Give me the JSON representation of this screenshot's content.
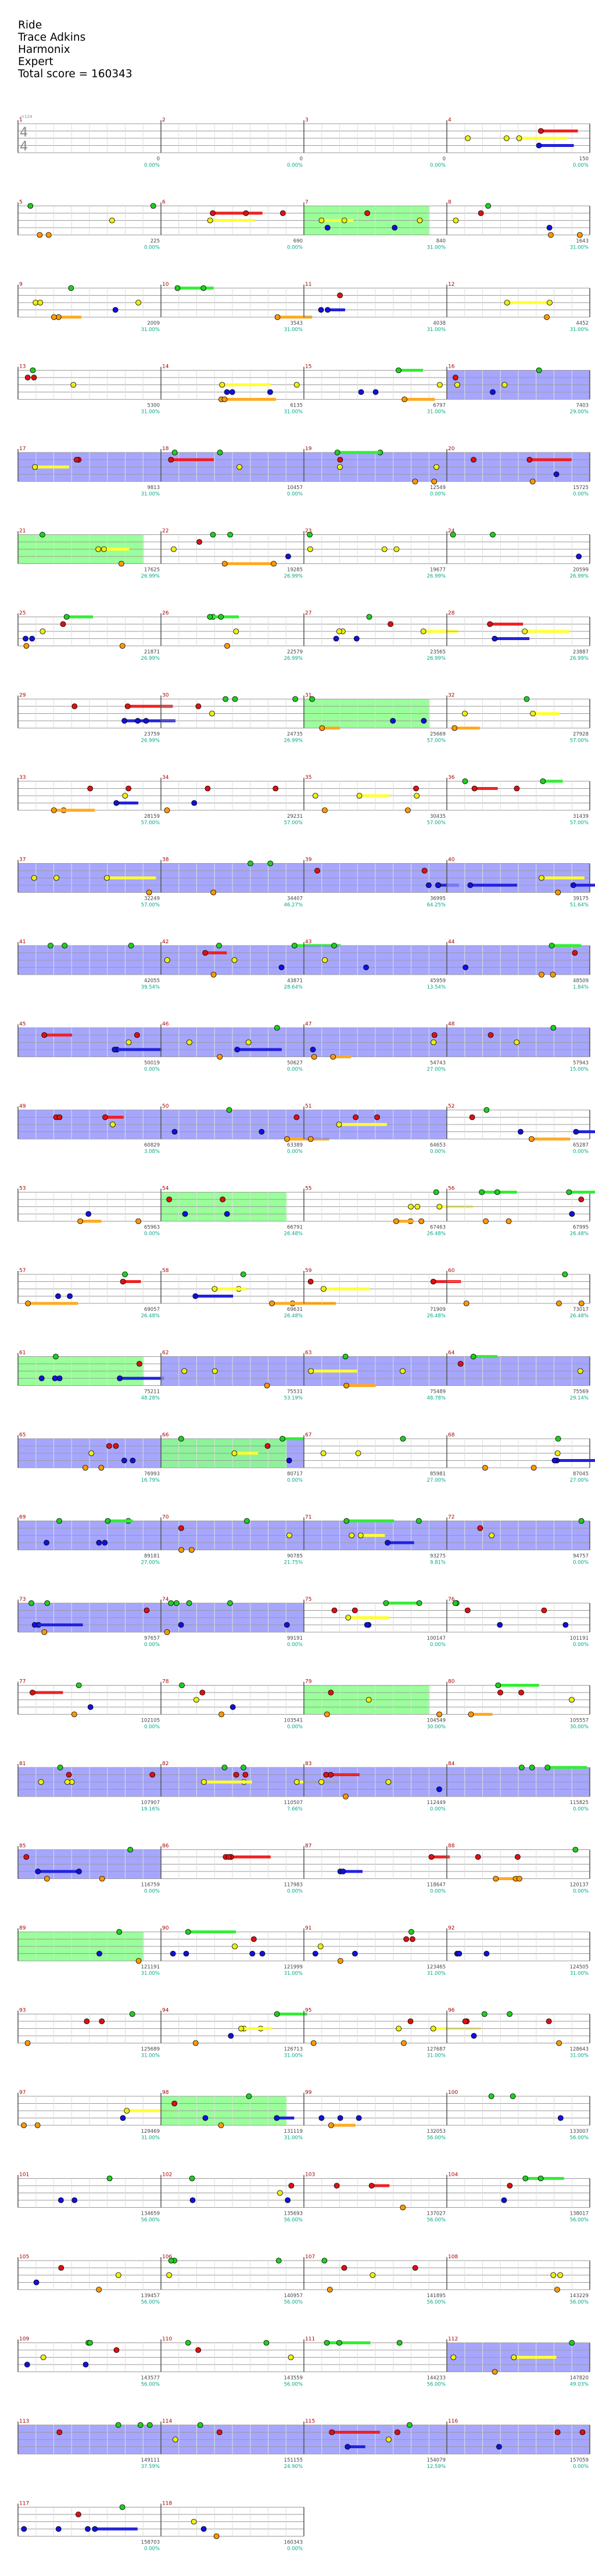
{
  "song": {
    "title": "Ride",
    "artist": "Trace Adkins",
    "game": "Harmonix",
    "difficulty": "Expert",
    "total_score_text": "Total score = 160343"
  },
  "colors": {
    "green_note": "#22cc22",
    "red_note": "#dd1111",
    "yellow_note": "#eeee11",
    "blue_note": "#1111dd",
    "orange_note": "#ff9900",
    "sustain_green": "#33ee33",
    "sustain_red": "#ee2222",
    "sustain_yellow": "#ffff33",
    "sustain_blue": "#2222dd",
    "sustain_orange": "#ffaa22",
    "overdrive_region": "#8888ff",
    "solo_region": "#88ff88",
    "measure_number": "#aa0000",
    "score_text": "#444444",
    "percent_text": "#00aa88",
    "staff_line": "#999999"
  },
  "time_signature": "4/4",
  "tempo_text": "♩=124",
  "measures": [
    {
      "n": "1",
      "score": "0",
      "pct": "0.00%"
    },
    {
      "n": "2",
      "score": "0",
      "pct": "0.00%"
    },
    {
      "n": "3",
      "score": "0",
      "pct": "0.00%"
    },
    {
      "n": "4",
      "score": "150",
      "pct": "0.00%"
    },
    {
      "n": "5",
      "score": "225",
      "pct": "0.00%"
    },
    {
      "n": "6",
      "score": "690",
      "pct": "0.00%"
    },
    {
      "n": "7",
      "score": "840",
      "pct": "31.00%"
    },
    {
      "n": "8",
      "score": "1643",
      "pct": "31.00%"
    },
    {
      "n": "9",
      "score": "2009",
      "pct": "31.00%"
    },
    {
      "n": "10",
      "score": "3543",
      "pct": "31.00%"
    },
    {
      "n": "11",
      "score": "4038",
      "pct": "31.00%"
    },
    {
      "n": "12",
      "score": "4452",
      "pct": "31.00%"
    },
    {
      "n": "13",
      "score": "5300",
      "pct": "31.00%"
    },
    {
      "n": "14",
      "score": "6135",
      "pct": "31.00%"
    },
    {
      "n": "15",
      "score": "6797",
      "pct": "31.00%"
    },
    {
      "n": "16",
      "score": "7403",
      "pct": "29.00%"
    },
    {
      "n": "17",
      "score": "9813",
      "pct": "31.00%"
    },
    {
      "n": "18",
      "score": "10457",
      "pct": "0.00%"
    },
    {
      "n": "19",
      "score": "12549",
      "pct": "0.00%"
    },
    {
      "n": "20",
      "score": "15725",
      "pct": "0.00%"
    },
    {
      "n": "21",
      "score": "17625",
      "pct": "26.99%"
    },
    {
      "n": "22",
      "score": "19285",
      "pct": "26.99%"
    },
    {
      "n": "23",
      "score": "19677",
      "pct": "26.99%"
    },
    {
      "n": "24",
      "score": "20599",
      "pct": "26.99%"
    },
    {
      "n": "25",
      "score": "21871",
      "pct": "26.99%"
    },
    {
      "n": "26",
      "score": "22579",
      "pct": "26.99%"
    },
    {
      "n": "27",
      "score": "23565",
      "pct": "26.99%"
    },
    {
      "n": "28",
      "score": "23887",
      "pct": "26.99%"
    },
    {
      "n": "29",
      "score": "23759",
      "pct": "26.99%"
    },
    {
      "n": "30",
      "score": "24735",
      "pct": "26.99%"
    },
    {
      "n": "31",
      "score": "25669",
      "pct": "57.00%"
    },
    {
      "n": "32",
      "score": "27928",
      "pct": "57.00%"
    },
    {
      "n": "33",
      "score": "28159",
      "pct": "57.00%"
    },
    {
      "n": "34",
      "score": "29231",
      "pct": "57.00%"
    },
    {
      "n": "35",
      "score": "30435",
      "pct": "57.00%"
    },
    {
      "n": "36",
      "score": "31439",
      "pct": "57.00%"
    },
    {
      "n": "37",
      "score": "32249",
      "pct": "57.00%"
    },
    {
      "n": "38",
      "score": "34407",
      "pct": "46.27%"
    },
    {
      "n": "39",
      "score": "36995",
      "pct": "64.25%"
    },
    {
      "n": "40",
      "score": "39175",
      "pct": "51.64%"
    },
    {
      "n": "41",
      "score": "42055",
      "pct": "39.54%"
    },
    {
      "n": "42",
      "score": "43871",
      "pct": "28.64%"
    },
    {
      "n": "43",
      "score": "45959",
      "pct": "13.54%"
    },
    {
      "n": "44",
      "score": "48509",
      "pct": "1.84%"
    },
    {
      "n": "45",
      "score": "50019",
      "pct": "0.00%"
    },
    {
      "n": "46",
      "score": "50627",
      "pct": "0.00%"
    },
    {
      "n": "47",
      "score": "54743",
      "pct": "27.00%"
    },
    {
      "n": "48",
      "score": "57943",
      "pct": "15.00%"
    },
    {
      "n": "49",
      "score": "60829",
      "pct": "3.08%"
    },
    {
      "n": "50",
      "score": "63389",
      "pct": "0.00%"
    },
    {
      "n": "51",
      "score": "64653",
      "pct": "0.00%"
    },
    {
      "n": "52",
      "score": "65287",
      "pct": "0.00%"
    },
    {
      "n": "53",
      "score": "65963",
      "pct": "0.00%"
    },
    {
      "n": "54",
      "score": "66791",
      "pct": "26.48%"
    },
    {
      "n": "55",
      "score": "67463",
      "pct": "26.48%"
    },
    {
      "n": "56",
      "score": "67995",
      "pct": "26.48%"
    },
    {
      "n": "57",
      "score": "69057",
      "pct": "26.48%"
    },
    {
      "n": "58",
      "score": "69631",
      "pct": "26.48%"
    },
    {
      "n": "59",
      "score": "71909",
      "pct": "26.48%"
    },
    {
      "n": "60",
      "score": "73017",
      "pct": "26.48%"
    },
    {
      "n": "61",
      "score": "75211",
      "pct": "48.28%"
    },
    {
      "n": "62",
      "score": "75531",
      "pct": "53.19%"
    },
    {
      "n": "63",
      "score": "75489",
      "pct": "48.78%"
    },
    {
      "n": "64",
      "score": "75569",
      "pct": "29.14%"
    },
    {
      "n": "65",
      "score": "76993",
      "pct": "16.79%"
    },
    {
      "n": "66",
      "score": "80717",
      "pct": "0.00%"
    },
    {
      "n": "67",
      "score": "85981",
      "pct": "27.00%"
    },
    {
      "n": "68",
      "score": "87045",
      "pct": "27.00%"
    },
    {
      "n": "69",
      "score": "89181",
      "pct": "27.00%"
    },
    {
      "n": "70",
      "score": "90785",
      "pct": "21.75%"
    },
    {
      "n": "71",
      "score": "93275",
      "pct": "9.81%"
    },
    {
      "n": "72",
      "score": "94757",
      "pct": "0.00%"
    },
    {
      "n": "73",
      "score": "97657",
      "pct": "0.00%"
    },
    {
      "n": "74",
      "score": "99191",
      "pct": "0.00%"
    },
    {
      "n": "75",
      "score": "100147",
      "pct": "0.00%"
    },
    {
      "n": "76",
      "score": "101191",
      "pct": "0.00%"
    },
    {
      "n": "77",
      "score": "102105",
      "pct": "0.00%"
    },
    {
      "n": "78",
      "score": "103541",
      "pct": "0.00%"
    },
    {
      "n": "79",
      "score": "104549",
      "pct": "30.00%"
    },
    {
      "n": "80",
      "score": "105557",
      "pct": "30.00%"
    },
    {
      "n": "81",
      "score": "107907",
      "pct": "19.16%"
    },
    {
      "n": "82",
      "score": "110507",
      "pct": "7.66%"
    },
    {
      "n": "83",
      "score": "112449",
      "pct": "0.00%"
    },
    {
      "n": "84",
      "score": "115825",
      "pct": "0.00%"
    },
    {
      "n": "85",
      "score": "116759",
      "pct": "0.00%"
    },
    {
      "n": "86",
      "score": "117983",
      "pct": "0.00%"
    },
    {
      "n": "87",
      "score": "118647",
      "pct": "0.00%"
    },
    {
      "n": "88",
      "score": "120137",
      "pct": "0.00%"
    },
    {
      "n": "89",
      "score": "121191",
      "pct": "31.00%"
    },
    {
      "n": "90",
      "score": "121999",
      "pct": "31.00%"
    },
    {
      "n": "91",
      "score": "123465",
      "pct": "31.00%"
    },
    {
      "n": "92",
      "score": "124505",
      "pct": "31.00%"
    },
    {
      "n": "93",
      "score": "125689",
      "pct": "31.00%"
    },
    {
      "n": "94",
      "score": "126713",
      "pct": "31.00%"
    },
    {
      "n": "95",
      "score": "127687",
      "pct": "31.00%"
    },
    {
      "n": "96",
      "score": "128643",
      "pct": "31.00%"
    },
    {
      "n": "97",
      "score": "129469",
      "pct": "31.00%"
    },
    {
      "n": "98",
      "score": "131119",
      "pct": "31.00%"
    },
    {
      "n": "99",
      "score": "132053",
      "pct": "56.00%"
    },
    {
      "n": "100",
      "score": "133007",
      "pct": "56.00%"
    },
    {
      "n": "101",
      "score": "134659",
      "pct": "56.00%"
    },
    {
      "n": "102",
      "score": "135693",
      "pct": "56.00%"
    },
    {
      "n": "103",
      "score": "137027",
      "pct": "56.00%"
    },
    {
      "n": "104",
      "score": "138017",
      "pct": "56.00%"
    },
    {
      "n": "105",
      "score": "139457",
      "pct": "56.00%"
    },
    {
      "n": "106",
      "score": "140957",
      "pct": "56.00%"
    },
    {
      "n": "107",
      "score": "141895",
      "pct": "56.00%"
    },
    {
      "n": "108",
      "score": "143229",
      "pct": "56.00%"
    },
    {
      "n": "109",
      "score": "143577",
      "pct": "56.00%"
    },
    {
      "n": "110",
      "score": "143559",
      "pct": "56.00%"
    },
    {
      "n": "111",
      "score": "144233",
      "pct": "56.00%"
    },
    {
      "n": "112",
      "score": "147820",
      "pct": "49.03%"
    },
    {
      "n": "113",
      "score": "149111",
      "pct": "37.59%"
    },
    {
      "n": "114",
      "score": "151155",
      "pct": "24.90%"
    },
    {
      "n": "115",
      "score": "154079",
      "pct": "12.59%"
    },
    {
      "n": "116",
      "score": "157059",
      "pct": "0.00%"
    },
    {
      "n": "117",
      "score": "158703",
      "pct": "0.00%"
    },
    {
      "n": "118",
      "score": "160343",
      "pct": "0.00%"
    }
  ]
}
